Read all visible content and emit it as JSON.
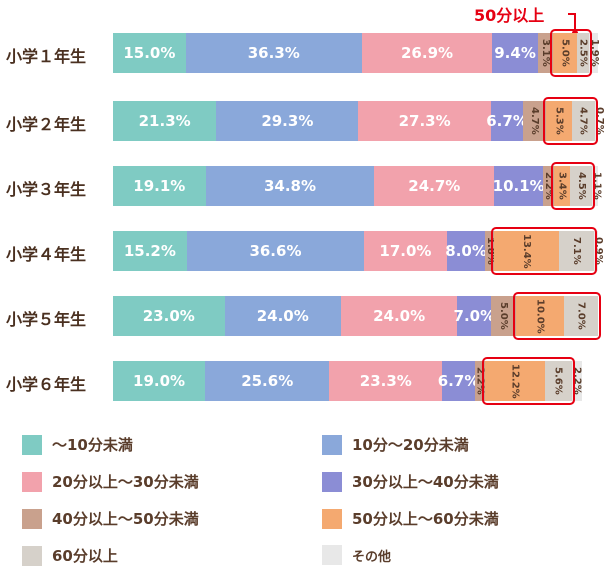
{
  "chart_data": {
    "type": "bar",
    "orientation": "horizontal-stacked-100",
    "categories": [
      "小学１年生",
      "小学２年生",
      "小学３年生",
      "小学４年生",
      "小学５年生",
      "小学６年生"
    ],
    "series": [
      {
        "name": "～10分未満",
        "color": "#7fcbc3",
        "values": [
          15.0,
          21.3,
          19.1,
          15.2,
          23.0,
          19.0
        ]
      },
      {
        "name": "10分～20分未満",
        "color": "#8aa8da",
        "values": [
          36.3,
          29.3,
          34.8,
          36.6,
          24.0,
          25.6
        ]
      },
      {
        "name": "20分以上～30分未満",
        "color": "#f2a2ac",
        "values": [
          26.9,
          27.3,
          24.7,
          17.0,
          24.0,
          23.3
        ]
      },
      {
        "name": "30分以上～40分未満",
        "color": "#8b8dd5",
        "values": [
          9.4,
          6.7,
          10.1,
          8.0,
          7.0,
          6.7
        ]
      },
      {
        "name": "40分以上～50分未満",
        "color": "#c9a18d",
        "values": [
          3.1,
          4.7,
          2.2,
          1.8,
          5.0,
          2.2
        ]
      },
      {
        "name": "50分以上～60分未満",
        "color": "#f4a970",
        "values": [
          5.0,
          5.3,
          3.4,
          13.4,
          10.0,
          12.2
        ]
      },
      {
        "name": "60分以上",
        "color": "#d6d1ca",
        "values": [
          2.5,
          4.7,
          4.5,
          7.1,
          7.0,
          5.6
        ]
      },
      {
        "name": "その他",
        "color": "#e8e8e8",
        "values": [
          1.9,
          0.7,
          1.1,
          0.9,
          null,
          2.2
        ]
      }
    ],
    "annotation": "50分以上",
    "highlight_color": "#e60012",
    "legend_position": "bottom"
  }
}
